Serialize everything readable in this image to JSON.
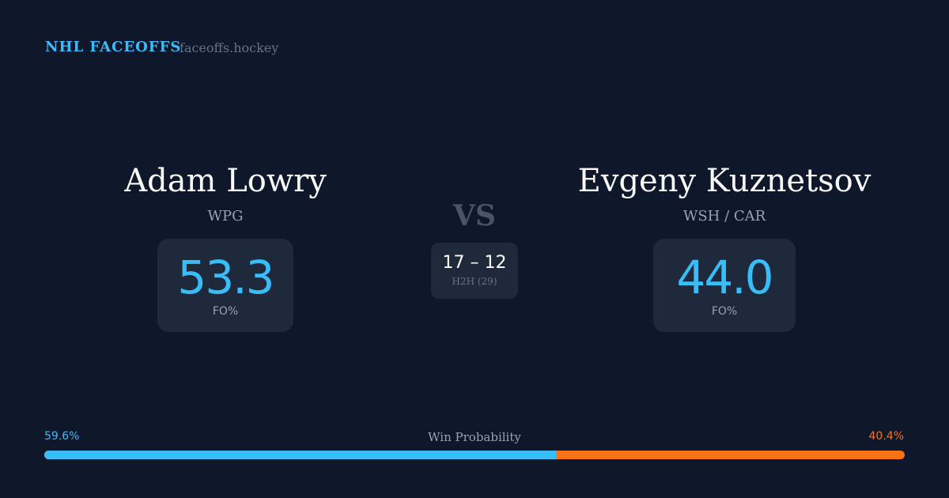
{
  "header": {
    "brand": "NHL FACEOFFS",
    "site": "faceoffs.hockey"
  },
  "left": {
    "name": "Adam Lowry",
    "team": "WPG",
    "fo_pct": "53.3",
    "fo_label": "FO%"
  },
  "right": {
    "name": "Evgeny Kuznetsov",
    "team": "WSH / CAR",
    "fo_pct": "44.0",
    "fo_label": "FO%"
  },
  "vs": "VS",
  "h2h": {
    "score": "17 – 12",
    "label": "H2H (29)"
  },
  "win_probability": {
    "label": "Win Probability",
    "left": "59.6%",
    "right": "40.4%",
    "left_value": 59.6,
    "colors": {
      "left": "#38bdf8",
      "right": "#f97316"
    }
  }
}
